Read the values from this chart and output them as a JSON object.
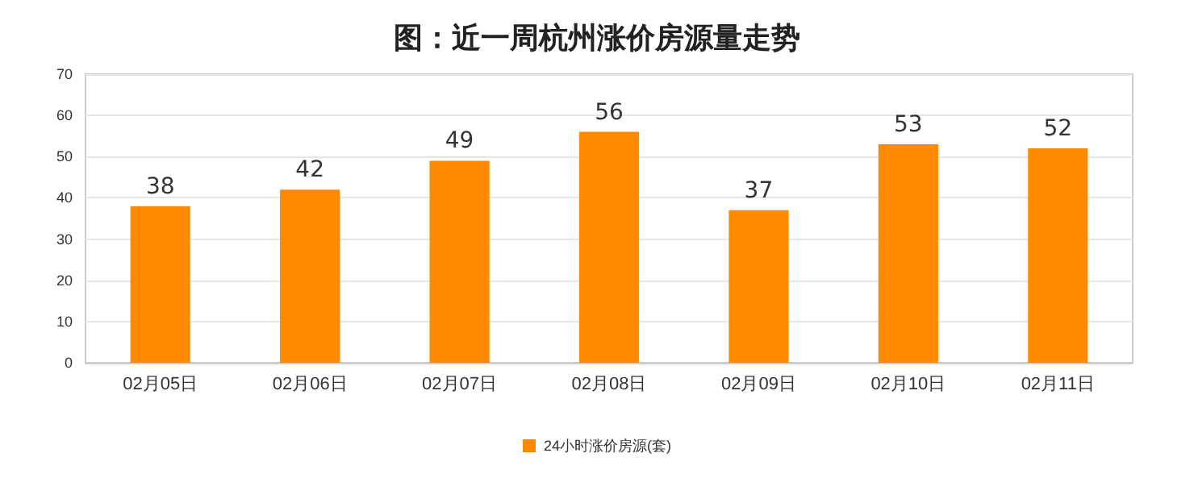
{
  "chart_data": {
    "type": "bar",
    "title": "图：近一周杭州涨价房源量走势",
    "categories": [
      "02月05日",
      "02月06日",
      "02月07日",
      "02月08日",
      "02月09日",
      "02月10日",
      "02月11日"
    ],
    "series": [
      {
        "name": "24小时涨价房源(套)",
        "color": "#ff8a00",
        "values": [
          38,
          42,
          49,
          56,
          37,
          53,
          52
        ]
      }
    ],
    "ylim": [
      0,
      70
    ],
    "yticks": [
      0,
      10,
      20,
      30,
      40,
      50,
      60,
      70
    ],
    "grid": "y",
    "legend": "bottom",
    "data_labels": true
  }
}
